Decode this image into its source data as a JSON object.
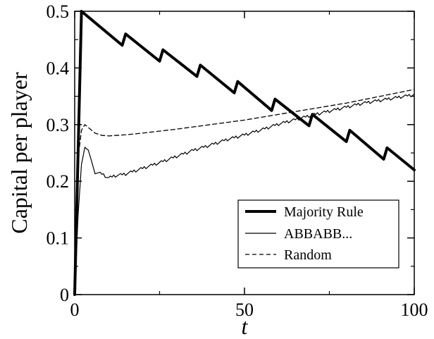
{
  "chart_data": {
    "type": "line",
    "xlabel": "t",
    "ylabel": "Capital per player",
    "xlim": [
      0,
      100
    ],
    "ylim": [
      0,
      0.5
    ],
    "x_ticks": [
      "0",
      "50",
      "100"
    ],
    "y_ticks": [
      "0",
      "0.1",
      "0.2",
      "0.3",
      "0.4",
      "0.5"
    ],
    "grid": false,
    "legend_position": "lower-right",
    "series": [
      {
        "name": "Majority Rule",
        "style": "thick-solid",
        "color": "#000000",
        "points": [
          [
            0,
            0
          ],
          [
            2,
            0.5
          ],
          [
            14,
            0.44
          ],
          [
            15,
            0.46
          ],
          [
            25,
            0.412
          ],
          [
            26,
            0.432
          ],
          [
            36,
            0.385
          ],
          [
            37,
            0.405
          ],
          [
            47,
            0.356
          ],
          [
            48,
            0.376
          ],
          [
            58,
            0.325
          ],
          [
            59,
            0.345
          ],
          [
            69,
            0.298
          ],
          [
            70,
            0.318
          ],
          [
            80,
            0.27
          ],
          [
            81,
            0.29
          ],
          [
            91,
            0.239
          ],
          [
            92,
            0.259
          ],
          [
            100,
            0.22
          ]
        ]
      },
      {
        "name": "ABBABB...",
        "style": "thin-solid",
        "color": "#000000",
        "points": [
          [
            0,
            0
          ],
          [
            1,
            0.14
          ],
          [
            2,
            0.23
          ],
          [
            3,
            0.26
          ],
          [
            4,
            0.255
          ],
          [
            5,
            0.235
          ],
          [
            6,
            0.218
          ],
          [
            8,
            0.215
          ],
          [
            10,
            0.208
          ],
          [
            12,
            0.212
          ],
          [
            15,
            0.215
          ],
          [
            20,
            0.225
          ],
          [
            25,
            0.235
          ],
          [
            30,
            0.246
          ],
          [
            35,
            0.257
          ],
          [
            40,
            0.266
          ],
          [
            45,
            0.276
          ],
          [
            50,
            0.284
          ],
          [
            55,
            0.293
          ],
          [
            60,
            0.303
          ],
          [
            65,
            0.311
          ],
          [
            70,
            0.319
          ],
          [
            75,
            0.326
          ],
          [
            80,
            0.333
          ],
          [
            85,
            0.34
          ],
          [
            90,
            0.345
          ],
          [
            95,
            0.35
          ],
          [
            100,
            0.355
          ]
        ],
        "oscillation_amplitude": 0.006
      },
      {
        "name": "Random",
        "style": "dashed",
        "color": "#000000",
        "points": [
          [
            0,
            0
          ],
          [
            1,
            0.24
          ],
          [
            2,
            0.29
          ],
          [
            3,
            0.3
          ],
          [
            4,
            0.295
          ],
          [
            6,
            0.285
          ],
          [
            8,
            0.281
          ],
          [
            10,
            0.28
          ],
          [
            15,
            0.282
          ],
          [
            20,
            0.285
          ],
          [
            30,
            0.292
          ],
          [
            40,
            0.3
          ],
          [
            50,
            0.308
          ],
          [
            60,
            0.318
          ],
          [
            70,
            0.328
          ],
          [
            80,
            0.338
          ],
          [
            90,
            0.35
          ],
          [
            100,
            0.362
          ]
        ]
      }
    ]
  }
}
